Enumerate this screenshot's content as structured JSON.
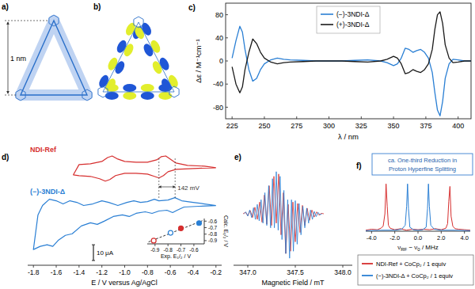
{
  "figure": {
    "a": {
      "panel_label": "a)",
      "scale_label": "1 nm"
    },
    "b": {
      "panel_label": "b)"
    }
  },
  "chart_data": [
    {
      "type": "line",
      "panel_label": "c)",
      "x_label": "λ / nm",
      "y_label": "Δε / M⁻¹cm⁻¹",
      "x": [
        225,
        228,
        231,
        233,
        235,
        238,
        241,
        244,
        247,
        250,
        255,
        260,
        265,
        270,
        280,
        290,
        300,
        310,
        320,
        330,
        340,
        345,
        350,
        353,
        356,
        359,
        362,
        365,
        368,
        371,
        374,
        377,
        380,
        382,
        384,
        386,
        388,
        390,
        393,
        396,
        400,
        405,
        410
      ],
      "series": [
        {
          "name": "(−)-3NDI-Δ",
          "color": "#2a7fd4",
          "values": [
            5,
            35,
            60,
            50,
            20,
            -15,
            -35,
            -30,
            -15,
            -5,
            2,
            5,
            3,
            2,
            1,
            0,
            0,
            0,
            1,
            2,
            0,
            -3,
            -8,
            -5,
            5,
            22,
            20,
            15,
            18,
            20,
            15,
            5,
            -20,
            -55,
            -85,
            -95,
            -70,
            -30,
            -5,
            3,
            2,
            0,
            0
          ]
        },
        {
          "name": "(+)-3NDI-Δ",
          "color": "#1a1a1a",
          "values": [
            -10,
            -40,
            -55,
            -45,
            -15,
            15,
            38,
            30,
            15,
            5,
            -2,
            -5,
            -3,
            -2,
            -1,
            0,
            0,
            0,
            -1,
            -2,
            0,
            3,
            8,
            5,
            -5,
            -22,
            -20,
            -15,
            -18,
            -20,
            -15,
            -5,
            20,
            55,
            80,
            85,
            65,
            28,
            5,
            -3,
            -2,
            0,
            0
          ]
        }
      ],
      "xlim": [
        220,
        410
      ],
      "ylim": [
        -100,
        100
      ],
      "xticks": [
        225,
        250,
        275,
        300,
        325,
        350,
        375,
        400
      ],
      "yticks": [
        -80,
        -40,
        0,
        40,
        80
      ],
      "legend": "top"
    },
    {
      "type": "line",
      "panel_label": "d)",
      "x_label": "E / V versus Ag/AgCl",
      "series": [
        {
          "name": "NDI-Ref",
          "color": "#d62e2e",
          "x": [
            -0.2,
            -0.4,
            -0.55,
            -0.62,
            -0.66,
            -0.7,
            -0.74,
            -0.8,
            -0.9,
            -1.0,
            -1.08,
            -1.13,
            -1.17,
            -1.22,
            -1.3,
            -1.4,
            -1.45,
            -1.4,
            -1.3,
            -1.2,
            -1.15,
            -1.11,
            -1.06,
            -1.0,
            -0.9,
            -0.8,
            -0.72,
            -0.68,
            -0.64,
            -0.6,
            -0.55,
            -0.45,
            -0.3,
            -0.2
          ],
          "values": [
            22,
            21.5,
            21,
            19.5,
            17,
            15.5,
            16.5,
            18,
            18.5,
            18.5,
            17,
            14.5,
            13.5,
            15,
            16.5,
            17,
            17.5,
            24,
            24.5,
            26,
            28.5,
            29.5,
            27.5,
            26,
            25.5,
            25.5,
            27,
            29,
            29.5,
            27.5,
            25,
            23.5,
            23,
            22
          ]
        },
        {
          "name": "(−)-3NDI-Δ",
          "color": "#2a7fd4",
          "x": [
            -0.2,
            -0.35,
            -0.48,
            -0.54,
            -0.58,
            -0.63,
            -0.7,
            -0.76,
            -0.82,
            -0.9,
            -0.96,
            -1.02,
            -1.1,
            -1.18,
            -1.24,
            -1.3,
            -1.38,
            -1.46,
            -1.52,
            -1.58,
            -1.63,
            -1.68,
            -1.74,
            -1.8,
            -1.76,
            -1.72,
            -1.66,
            -1.6,
            -1.54,
            -1.48,
            -1.42,
            -1.36,
            -1.28,
            -1.2,
            -1.14,
            -1.06,
            -0.98,
            -0.92,
            -0.86,
            -0.8,
            -0.74,
            -0.7,
            -0.62,
            -0.56,
            -0.5,
            -0.4,
            -0.3,
            -0.2
          ],
          "values": [
            -2,
            -2.5,
            -3,
            -5,
            -6.5,
            -5,
            -5.5,
            -7,
            -6,
            -7,
            -9,
            -8,
            -9,
            -12,
            -14,
            -13,
            -15,
            -20,
            -21,
            -24,
            -28,
            -27,
            -28,
            -30,
            -8,
            -2,
            2,
            1,
            -1,
            1,
            0,
            -2,
            -1,
            1,
            0,
            -2,
            0,
            1,
            0,
            0.5,
            2,
            1,
            1.5,
            3,
            1,
            0,
            -1,
            -2
          ]
        }
      ],
      "xlim": [
        -1.85,
        -0.15
      ],
      "ylim": [
        -40,
        32
      ],
      "xticks": [
        -1.8,
        -1.6,
        -1.4,
        -1.2,
        {
          "value": -1.0,
          "label": "-1.0"
        },
        -0.8,
        -0.6,
        -0.4,
        -0.2
      ],
      "tick_labels": "x",
      "legend": "left",
      "annotation": {
        "text": "142 mV",
        "x": [
          -0.7,
          -0.558
        ]
      },
      "scale_bar": {
        "value": 10,
        "label": "10 μA"
      }
    },
    {
      "type": "scatter",
      "x_label": "Exp. E₁/₂ / V",
      "y_label": "Calc. E₁/₂ / V",
      "series": [
        {
          "type": "line",
          "line_style": "dashed",
          "color": "#333333",
          "x": [
            -0.95,
            -0.53
          ],
          "values": [
            -0.92,
            -0.59
          ]
        },
        {
          "marker": "open-circle",
          "colors": [
            "#d62e2e",
            "#2a7fd4"
          ],
          "x": [
            -0.91,
            -0.78
          ],
          "values": [
            -0.9,
            -0.78
          ]
        },
        {
          "marker": "circle",
          "colors": [
            "#d62e2e",
            "#2a7fd4"
          ],
          "x": [
            -0.7,
            -0.56
          ],
          "values": [
            -0.71,
            -0.63
          ]
        }
      ],
      "xlim": [
        -0.96,
        -0.52
      ],
      "ylim": [
        -0.95,
        -0.56
      ],
      "xticks": [
        -0.9,
        -0.8,
        -0.7,
        -0.6
      ],
      "yticks": [
        -0.9,
        -0.8,
        -0.7,
        -0.6
      ]
    },
    {
      "type": "line",
      "panel_label": "e)",
      "x_label": "Magnetic Field / mT",
      "series": [
        {
          "color": "#d62e2e",
          "x": [
            346.95,
            346.975,
            347.0,
            347.025,
            347.05,
            347.075,
            347.1,
            347.125,
            347.15,
            347.175,
            347.2,
            347.225,
            347.25,
            347.275,
            347.3,
            347.325,
            347.35,
            347.375,
            347.4,
            347.425,
            347.45,
            347.475,
            347.5,
            347.525,
            347.55,
            347.575,
            347.6,
            347.625,
            347.65,
            347.675,
            347.7,
            347.725,
            347.75,
            347.775,
            347.8
          ],
          "values": [
            0,
            0.03,
            -0.04,
            0.07,
            -0.08,
            0.14,
            -0.12,
            0.25,
            -0.18,
            0.4,
            -0.22,
            0.6,
            -0.25,
            0.8,
            -0.2,
            0.85,
            -0.45,
            0.45,
            -0.85,
            0.2,
            -0.8,
            0.25,
            -0.6,
            0.22,
            -0.4,
            0.18,
            -0.25,
            0.12,
            -0.14,
            0.08,
            -0.07,
            0.04,
            -0.03,
            0.01,
            0
          ]
        },
        {
          "color": "#2a7fd4",
          "x": [
            346.96,
            346.98,
            347.0,
            347.02,
            347.04,
            347.06,
            347.08,
            347.1,
            347.12,
            347.14,
            347.16,
            347.18,
            347.2,
            347.22,
            347.24,
            347.26,
            347.28,
            347.3,
            347.32,
            347.34,
            347.36,
            347.38,
            347.4,
            347.42,
            347.44,
            347.46,
            347.48,
            347.5,
            347.52,
            347.54,
            347.56,
            347.58,
            347.6,
            347.62,
            347.64,
            347.66,
            347.68,
            347.7,
            347.72,
            347.74,
            347.76,
            347.78
          ],
          "values": [
            0,
            0.04,
            -0.05,
            0.08,
            -0.08,
            0.13,
            -0.12,
            0.2,
            -0.15,
            0.3,
            -0.2,
            0.45,
            -0.25,
            0.6,
            -0.3,
            0.75,
            -0.3,
            0.9,
            -0.35,
            0.8,
            -0.55,
            0.5,
            -0.85,
            0.3,
            -0.95,
            0.3,
            -0.8,
            0.28,
            -0.65,
            0.22,
            -0.45,
            0.16,
            -0.3,
            0.12,
            -0.2,
            0.08,
            -0.12,
            0.05,
            -0.06,
            0.03,
            -0.02,
            0
          ]
        }
      ],
      "xlim": [
        346.85,
        348.1
      ],
      "ylim": [
        -1.1,
        1.1
      ],
      "xticks": [
        {
          "value": 347.0,
          "label": "347.0"
        },
        347.5,
        {
          "value": 348.0,
          "label": "348.0"
        }
      ],
      "tick_labels": "x"
    },
    {
      "type": "line",
      "panel_label": "f)",
      "x_label": [
        "ν",
        "RF",
        " − ν",
        "0",
        " / MHz"
      ],
      "annotation": [
        "ca. One-third Reduction in",
        "Proton Hyperfine Splitting"
      ],
      "series": [
        {
          "name": "NDI-Ref + CoCp₂ / 1 equiv",
          "color": "#d62e2e",
          "x": [
            -4.5,
            -4.0,
            -3.5,
            -3.2,
            -3.0,
            -2.85,
            -2.75,
            -2.65,
            -2.55,
            -2.4,
            -2.0,
            -1.5,
            -1.0,
            -0.5,
            0,
            0.5,
            1.0,
            1.5,
            2.0,
            2.4,
            2.55,
            2.65,
            2.75,
            2.85,
            3.0,
            3.2,
            3.5,
            4.0,
            4.5
          ],
          "values": [
            0.02,
            0.04,
            0.03,
            0.06,
            0.1,
            0.35,
            0.95,
            0.5,
            0.12,
            0.06,
            0.03,
            0.05,
            0.02,
            0.04,
            0.03,
            0.04,
            0.03,
            0.05,
            0.03,
            0.06,
            0.15,
            0.6,
            0.9,
            0.3,
            0.1,
            0.05,
            0.04,
            0.03,
            0.02
          ]
        },
        {
          "name": "(−)-3NDI-Δ + CoCp₂ / 1 equiv",
          "color": "#2a7fd4",
          "x": [
            -4.5,
            -3.0,
            -2.0,
            -1.4,
            -1.1,
            -0.98,
            -0.9,
            -0.82,
            -0.7,
            -0.4,
            0,
            0.4,
            0.7,
            0.82,
            0.9,
            0.98,
            1.1,
            1.4,
            2.0,
            3.0,
            4.5
          ],
          "values": [
            0.01,
            0.02,
            0.02,
            0.04,
            0.12,
            0.5,
            0.95,
            0.45,
            0.08,
            0.03,
            0.02,
            0.03,
            0.08,
            0.45,
            0.95,
            0.5,
            0.12,
            0.04,
            0.02,
            0.02,
            0.01
          ]
        }
      ],
      "xlim": [
        -4.5,
        4.5
      ],
      "ylim": [
        0,
        1.05
      ],
      "xticks": [
        {
          "value": -4,
          "label": "-4.0"
        },
        {
          "value": -2,
          "label": "-2.0"
        },
        {
          "value": 0,
          "label": "0.0"
        },
        {
          "value": 2,
          "label": "2.0"
        },
        {
          "value": 4,
          "label": "4.0"
        }
      ],
      "tick_labels": "x",
      "legend": "bottom"
    }
  ]
}
